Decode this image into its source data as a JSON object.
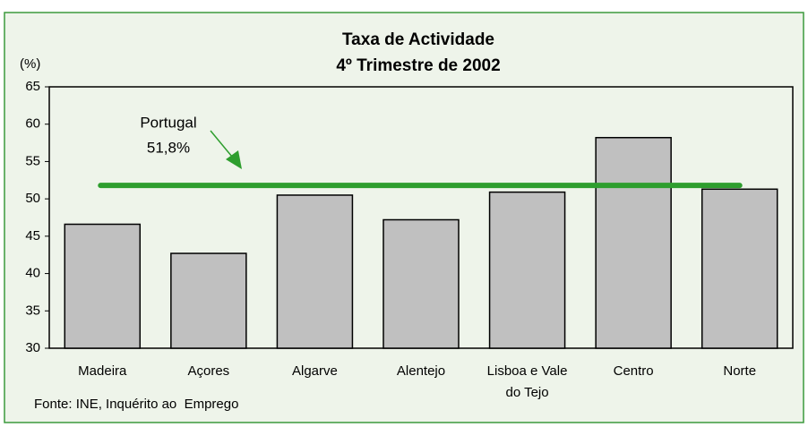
{
  "chart_data": {
    "type": "bar",
    "title": "Taxa de Actividade",
    "subtitle": "4º Trimestre de 2002",
    "y_label": "(%)",
    "source": "Fonte: INE, Inquérito ao  Emprego",
    "categories": [
      "Madeira",
      "Açores",
      "Algarve",
      "Alentejo",
      "Lisboa e Vale do Tejo",
      "Centro",
      "Norte"
    ],
    "values": [
      46.6,
      42.7,
      50.5,
      47.2,
      50.9,
      58.2,
      51.3
    ],
    "color": "#c0c0c0",
    "reference": {
      "name": "Portugal",
      "value": 51.8,
      "value_label": "51,8%",
      "color": "#2e9e2e"
    },
    "ylim": [
      30,
      65
    ],
    "yticks": [
      30,
      35,
      40,
      45,
      50,
      55,
      60,
      65
    ],
    "grid": false
  }
}
